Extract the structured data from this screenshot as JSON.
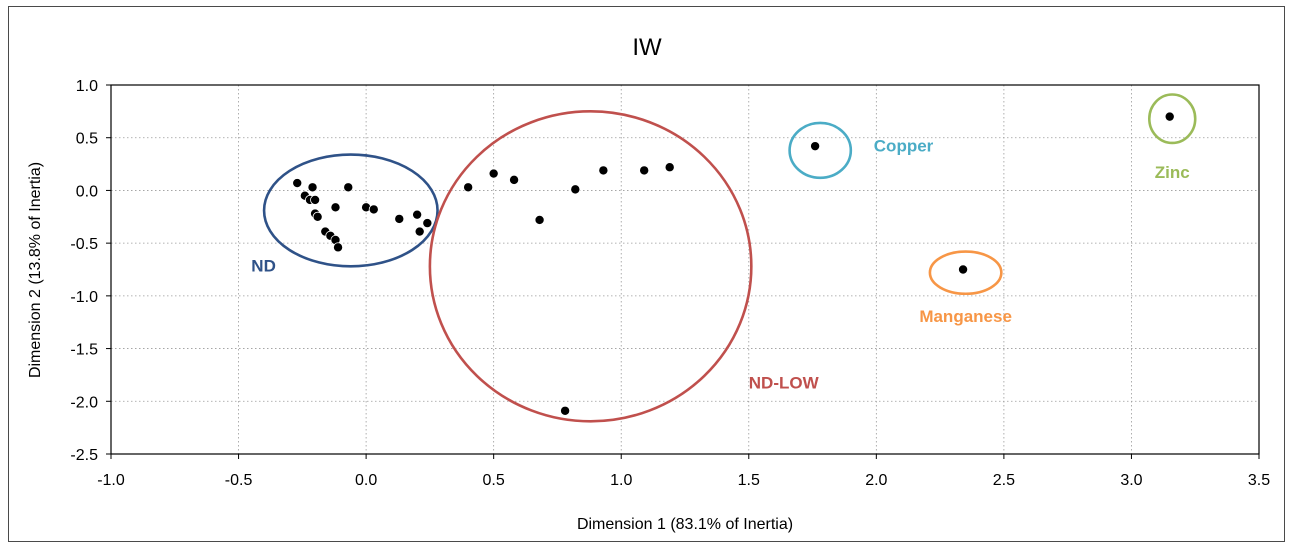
{
  "chart_data": {
    "type": "scatter",
    "title": "IW",
    "xlabel": "Dimension 1 (83.1% of Inertia)",
    "ylabel": "Dimension 2 (13.8% of Inertia)",
    "xlim": [
      -1.0,
      3.5
    ],
    "ylim": [
      -2.5,
      1.0
    ],
    "xticks": [
      "-1.0",
      "-0.5",
      "0.0",
      "0.5",
      "1.0",
      "1.5",
      "2.0",
      "2.5",
      "3.0",
      "3.5"
    ],
    "yticks": [
      "1.0",
      "0.5",
      "0.0",
      "-0.5",
      "-1.0",
      "-1.5",
      "-2.0",
      "-2.5"
    ],
    "grid": true,
    "point_color": "#000000",
    "points": [
      {
        "x": -0.27,
        "y": 0.07
      },
      {
        "x": -0.24,
        "y": -0.05
      },
      {
        "x": -0.21,
        "y": 0.03
      },
      {
        "x": -0.22,
        "y": -0.09
      },
      {
        "x": -0.2,
        "y": -0.09
      },
      {
        "x": -0.2,
        "y": -0.22
      },
      {
        "x": -0.19,
        "y": -0.25
      },
      {
        "x": -0.16,
        "y": -0.39
      },
      {
        "x": -0.14,
        "y": -0.43
      },
      {
        "x": -0.12,
        "y": -0.47
      },
      {
        "x": -0.11,
        "y": -0.54
      },
      {
        "x": -0.12,
        "y": -0.16
      },
      {
        "x": -0.07,
        "y": 0.03
      },
      {
        "x": 0.0,
        "y": -0.16
      },
      {
        "x": 0.03,
        "y": -0.18
      },
      {
        "x": 0.13,
        "y": -0.27
      },
      {
        "x": 0.2,
        "y": -0.23
      },
      {
        "x": 0.21,
        "y": -0.39
      },
      {
        "x": 0.24,
        "y": -0.31
      },
      {
        "x": 0.4,
        "y": 0.03
      },
      {
        "x": 0.5,
        "y": 0.16
      },
      {
        "x": 0.58,
        "y": 0.1
      },
      {
        "x": 0.68,
        "y": -0.28
      },
      {
        "x": 0.82,
        "y": 0.01
      },
      {
        "x": 0.93,
        "y": 0.19
      },
      {
        "x": 1.09,
        "y": 0.19
      },
      {
        "x": 1.19,
        "y": 0.22
      },
      {
        "x": 0.78,
        "y": -2.09
      },
      {
        "x": 1.76,
        "y": 0.42
      },
      {
        "x": 2.34,
        "y": -0.75
      },
      {
        "x": 3.15,
        "y": 0.7
      }
    ],
    "clusters": [
      {
        "label": "ND",
        "color": "#2f5288",
        "cx": -0.06,
        "cy": -0.19,
        "rx": 0.34,
        "ry": 0.53,
        "label_x": -0.45,
        "label_y": -0.77
      },
      {
        "label": "ND-LOW",
        "color": "#c0504d",
        "cx": 0.88,
        "cy": -0.72,
        "rx": 0.63,
        "ry": 1.47,
        "label_x": 1.5,
        "label_y": -1.88
      },
      {
        "label": "Copper",
        "color": "#4bacc6",
        "cx": 1.78,
        "cy": 0.38,
        "rx": 0.12,
        "ry": 0.26,
        "label_x": 1.99,
        "label_y": 0.37
      },
      {
        "label": "Manganese",
        "color": "#f79646",
        "cx": 2.35,
        "cy": -0.78,
        "rx": 0.14,
        "ry": 0.2,
        "label_x": 2.35,
        "label_y": -1.25
      },
      {
        "label": "Zinc",
        "color": "#9bbb59",
        "cx": 3.16,
        "cy": 0.68,
        "rx": 0.09,
        "ry": 0.23,
        "label_x": 3.16,
        "label_y": 0.12
      }
    ]
  }
}
